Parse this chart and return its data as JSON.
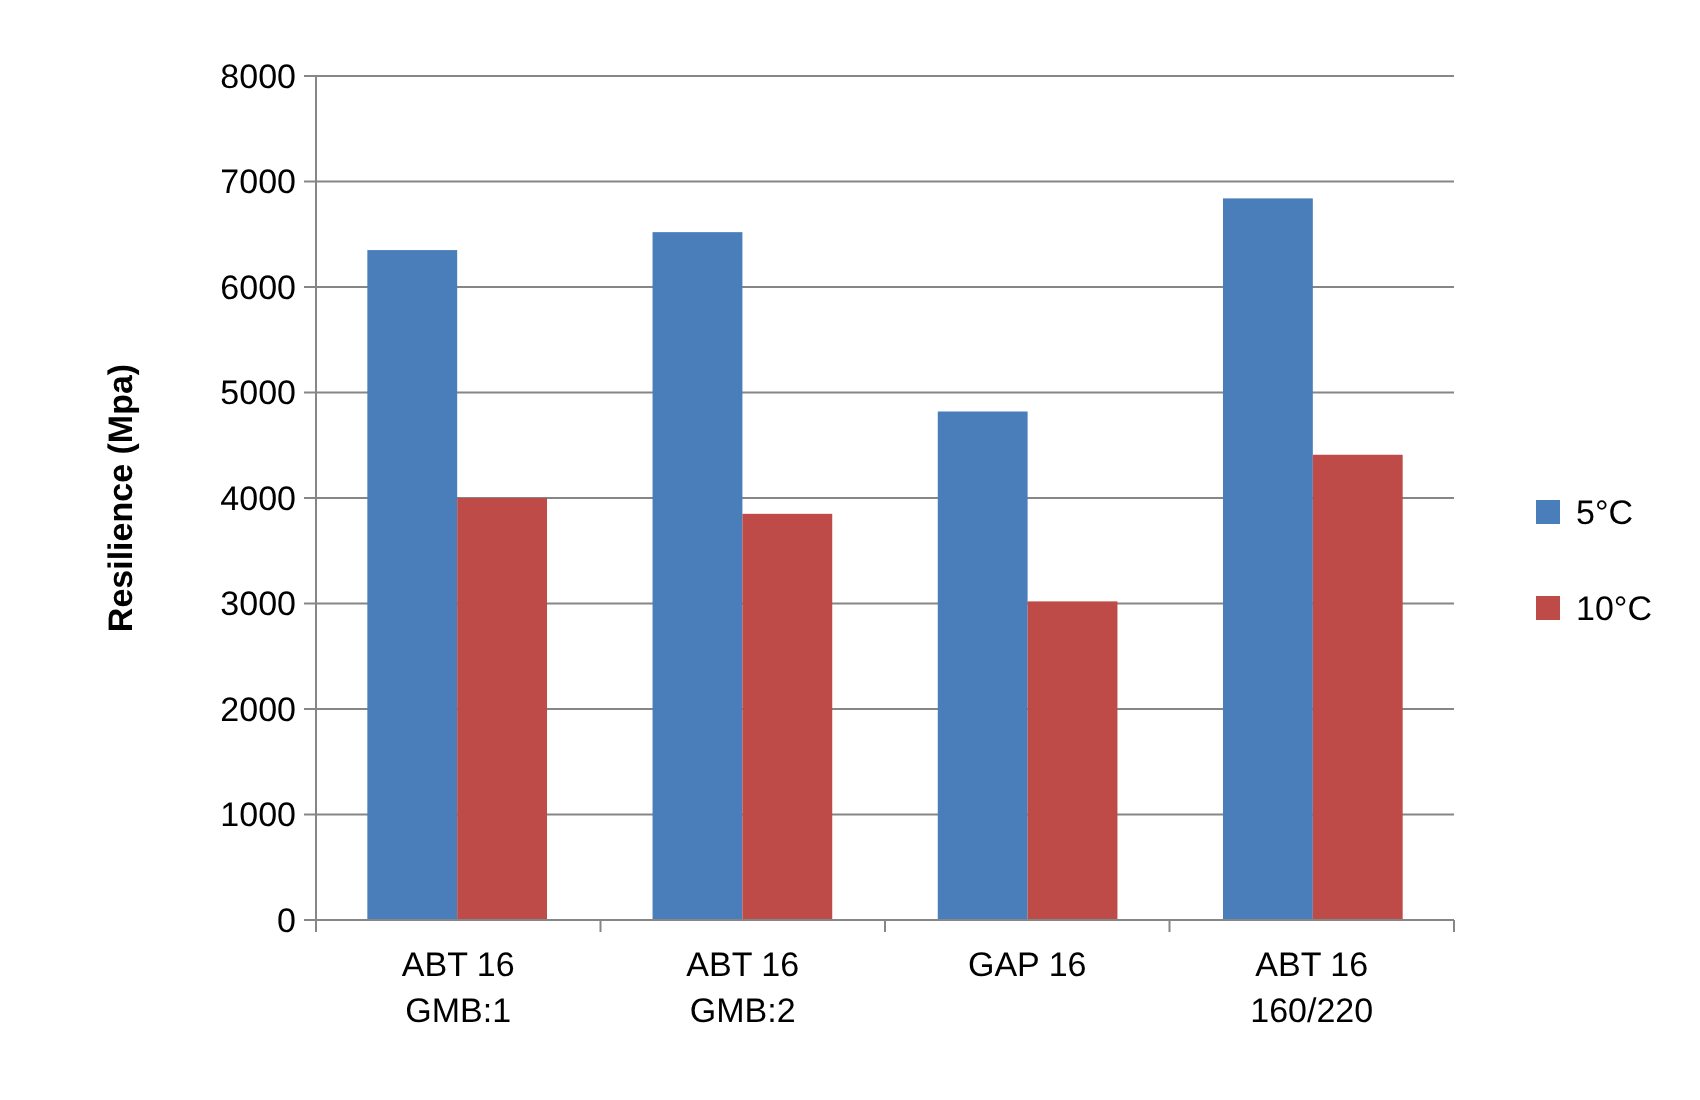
{
  "chart_data": {
    "type": "bar",
    "ylabel": "Resilience (Mpa)",
    "categories": [
      "ABT 16\nGMB:1",
      "ABT 16\nGMB:2",
      "GAP 16",
      "ABT 16\n160/220"
    ],
    "series": [
      {
        "name": "5°C",
        "color": "#4a7ebb",
        "values": [
          6350,
          6520,
          4820,
          6840
        ]
      },
      {
        "name": "10°C",
        "color": "#be4b48",
        "values": [
          4000,
          3850,
          3020,
          4410
        ]
      }
    ],
    "ylim": [
      0,
      8000
    ],
    "yticks": [
      0,
      1000,
      2000,
      3000,
      4000,
      5000,
      6000,
      7000,
      8000
    ],
    "grid": "y",
    "legend": "right"
  }
}
